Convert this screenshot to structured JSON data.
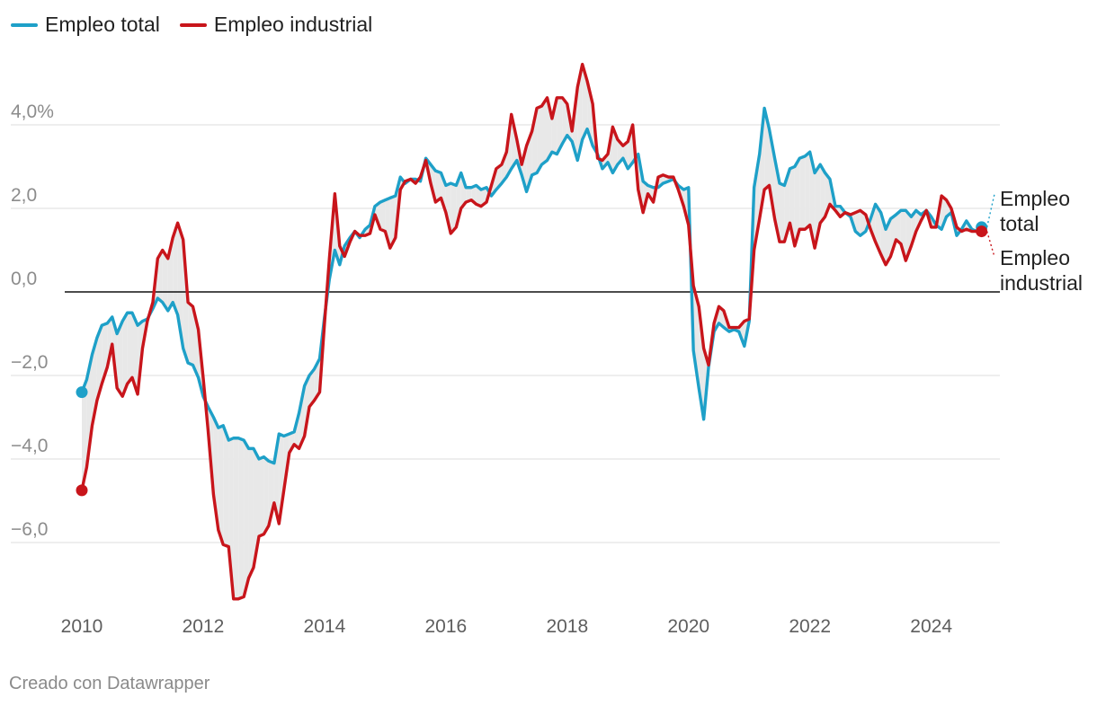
{
  "colors": {
    "total": "#1ea0c8",
    "industrial": "#c8151b",
    "gap_fill": "#e8e8e8",
    "grid": "#dcdcdc",
    "zero_line": "#111111"
  },
  "legend": {
    "items": [
      {
        "label": "Empleo total",
        "color_key": "total"
      },
      {
        "label": "Empleo industrial",
        "color_key": "industrial"
      }
    ]
  },
  "footer": {
    "credit": "Creado con Datawrapper"
  },
  "chart_data": {
    "type": "line",
    "title": "",
    "xlabel": "",
    "ylabel": "",
    "xlim": [
      2010,
      2024.85
    ],
    "ylim": [
      -7.4,
      5.4
    ],
    "y_ticks": [
      {
        "value": -6,
        "label": "−6,0"
      },
      {
        "value": -4,
        "label": "−4,0"
      },
      {
        "value": -2,
        "label": "−2,0"
      },
      {
        "value": 0,
        "label": "0,0"
      },
      {
        "value": 2,
        "label": "2,0"
      },
      {
        "value": 4,
        "label": "4,0%"
      }
    ],
    "x_ticks": [
      {
        "value": 2010,
        "label": "2010"
      },
      {
        "value": 2012,
        "label": "2012"
      },
      {
        "value": 2014,
        "label": "2014"
      },
      {
        "value": 2016,
        "label": "2016"
      },
      {
        "value": 2018,
        "label": "2018"
      },
      {
        "value": 2020,
        "label": "2020"
      },
      {
        "value": 2022,
        "label": "2022"
      },
      {
        "value": 2024,
        "label": "2024"
      }
    ],
    "grid": true,
    "legend_position": "top-left",
    "x": [
      2010.0,
      2010.08,
      2010.17,
      2010.25,
      2010.33,
      2010.42,
      2010.5,
      2010.58,
      2010.67,
      2010.75,
      2010.83,
      2010.92,
      2011.0,
      2011.08,
      2011.17,
      2011.25,
      2011.33,
      2011.42,
      2011.5,
      2011.58,
      2011.67,
      2011.75,
      2011.83,
      2011.92,
      2012.0,
      2012.08,
      2012.17,
      2012.25,
      2012.33,
      2012.42,
      2012.5,
      2012.58,
      2012.67,
      2012.75,
      2012.83,
      2012.92,
      2013.0,
      2013.08,
      2013.17,
      2013.25,
      2013.33,
      2013.42,
      2013.5,
      2013.58,
      2013.67,
      2013.75,
      2013.83,
      2013.92,
      2014.0,
      2014.08,
      2014.17,
      2014.25,
      2014.33,
      2014.42,
      2014.5,
      2014.58,
      2014.67,
      2014.75,
      2014.83,
      2014.92,
      2015.0,
      2015.08,
      2015.17,
      2015.25,
      2015.33,
      2015.42,
      2015.5,
      2015.58,
      2015.67,
      2015.75,
      2015.83,
      2015.92,
      2016.0,
      2016.08,
      2016.17,
      2016.25,
      2016.33,
      2016.42,
      2016.5,
      2016.58,
      2016.67,
      2016.75,
      2016.83,
      2016.92,
      2017.0,
      2017.08,
      2017.17,
      2017.25,
      2017.33,
      2017.42,
      2017.5,
      2017.58,
      2017.67,
      2017.75,
      2017.83,
      2017.92,
      2018.0,
      2018.08,
      2018.17,
      2018.25,
      2018.33,
      2018.42,
      2018.5,
      2018.58,
      2018.67,
      2018.75,
      2018.83,
      2018.92,
      2019.0,
      2019.08,
      2019.17,
      2019.25,
      2019.33,
      2019.42,
      2019.5,
      2019.58,
      2019.67,
      2019.75,
      2019.83,
      2019.92,
      2020.0,
      2020.08,
      2020.17,
      2020.25,
      2020.33,
      2020.42,
      2020.5,
      2020.58,
      2020.67,
      2020.75,
      2020.83,
      2020.92,
      2021.0,
      2021.08,
      2021.17,
      2021.25,
      2021.33,
      2021.42,
      2021.5,
      2021.58,
      2021.67,
      2021.75,
      2021.83,
      2021.92,
      2022.0,
      2022.08,
      2022.17,
      2022.25,
      2022.33,
      2022.42,
      2022.5,
      2022.58,
      2022.67,
      2022.75,
      2022.83,
      2022.92,
      2023.0,
      2023.08,
      2023.17,
      2023.25,
      2023.33,
      2023.42,
      2023.5,
      2023.58,
      2023.67,
      2023.75,
      2023.83,
      2023.92,
      2024.0,
      2024.08,
      2024.17,
      2024.25,
      2024.33,
      2024.42,
      2024.5,
      2024.58,
      2024.67,
      2024.75,
      2024.83
    ],
    "series": [
      {
        "name": "Empleo total",
        "color_key": "total",
        "end_label": [
          "Empleo",
          "total"
        ],
        "values": [
          -2.4,
          -2.1,
          -1.5,
          -1.1,
          -0.8,
          -0.75,
          -0.6,
          -1.0,
          -0.7,
          -0.5,
          -0.5,
          -0.8,
          -0.7,
          -0.65,
          -0.4,
          -0.15,
          -0.25,
          -0.45,
          -0.25,
          -0.55,
          -1.35,
          -1.7,
          -1.75,
          -2.05,
          -2.5,
          -2.75,
          -3.0,
          -3.25,
          -3.2,
          -3.55,
          -3.5,
          -3.5,
          -3.55,
          -3.75,
          -3.75,
          -4.0,
          -3.95,
          -4.05,
          -4.1,
          -3.4,
          -3.45,
          -3.4,
          -3.35,
          -2.9,
          -2.25,
          -2.0,
          -1.85,
          -1.6,
          -0.6,
          0.3,
          1.0,
          0.65,
          1.1,
          1.3,
          1.45,
          1.3,
          1.5,
          1.6,
          2.05,
          2.15,
          2.2,
          2.25,
          2.3,
          2.75,
          2.6,
          2.7,
          2.7,
          2.65,
          3.2,
          3.05,
          2.9,
          2.85,
          2.55,
          2.6,
          2.55,
          2.85,
          2.5,
          2.5,
          2.55,
          2.45,
          2.5,
          2.3,
          2.45,
          2.6,
          2.75,
          2.95,
          3.15,
          2.8,
          2.4,
          2.8,
          2.85,
          3.05,
          3.15,
          3.35,
          3.3,
          3.55,
          3.75,
          3.6,
          3.15,
          3.65,
          3.9,
          3.5,
          3.3,
          2.95,
          3.1,
          2.85,
          3.05,
          3.2,
          2.95,
          3.1,
          3.3,
          2.65,
          2.55,
          2.5,
          2.5,
          2.6,
          2.65,
          2.7,
          2.55,
          2.45,
          2.5,
          -1.4,
          -2.3,
          -3.05,
          -1.8,
          -0.95,
          -0.75,
          -0.85,
          -0.95,
          -0.9,
          -0.95,
          -1.3,
          -0.7,
          2.5,
          3.3,
          4.4,
          3.9,
          3.2,
          2.6,
          2.55,
          2.95,
          3.0,
          3.2,
          3.25,
          3.35,
          2.85,
          3.05,
          2.85,
          2.7,
          2.05,
          2.05,
          1.9,
          1.8,
          1.45,
          1.35,
          1.45,
          1.75,
          2.1,
          1.9,
          1.5,
          1.75,
          1.85,
          1.95,
          1.95,
          1.8,
          1.95,
          1.85,
          1.95,
          1.8,
          1.6,
          1.5,
          1.8,
          1.9,
          1.35,
          1.5,
          1.7,
          1.5,
          1.45,
          1.55
        ]
      },
      {
        "name": "Empleo industrial",
        "color_key": "industrial",
        "end_label": [
          "Empleo",
          "industrial"
        ],
        "values": [
          -4.75,
          -4.2,
          -3.2,
          -2.6,
          -2.2,
          -1.8,
          -1.25,
          -2.3,
          -2.5,
          -2.2,
          -2.05,
          -2.45,
          -1.35,
          -0.7,
          -0.25,
          0.8,
          1.0,
          0.8,
          1.3,
          1.65,
          1.25,
          -0.25,
          -0.35,
          -0.9,
          -2.05,
          -3.3,
          -4.85,
          -5.7,
          -6.05,
          -6.1,
          -7.35,
          -7.35,
          -7.3,
          -6.85,
          -6.6,
          -5.85,
          -5.8,
          -5.6,
          -5.05,
          -5.55,
          -4.75,
          -3.85,
          -3.65,
          -3.75,
          -3.45,
          -2.75,
          -2.6,
          -2.4,
          -0.75,
          0.8,
          2.35,
          1.1,
          0.85,
          1.2,
          1.45,
          1.35,
          1.35,
          1.4,
          1.85,
          1.5,
          1.45,
          1.05,
          1.3,
          2.45,
          2.65,
          2.7,
          2.6,
          2.75,
          3.15,
          2.6,
          2.15,
          2.25,
          1.9,
          1.4,
          1.55,
          2.0,
          2.15,
          2.2,
          2.1,
          2.05,
          2.15,
          2.55,
          2.95,
          3.05,
          3.35,
          4.25,
          3.65,
          3.05,
          3.5,
          3.85,
          4.4,
          4.45,
          4.65,
          4.15,
          4.65,
          4.65,
          4.5,
          3.85,
          4.9,
          5.45,
          5.05,
          4.5,
          3.2,
          3.15,
          3.3,
          3.95,
          3.65,
          3.5,
          3.6,
          4.0,
          2.45,
          1.9,
          2.35,
          2.15,
          2.75,
          2.8,
          2.75,
          2.75,
          2.45,
          2.05,
          1.6,
          0.15,
          -0.35,
          -1.35,
          -1.75,
          -0.75,
          -0.35,
          -0.45,
          -0.85,
          -0.85,
          -0.85,
          -0.7,
          -0.65,
          1.0,
          1.75,
          2.45,
          2.55,
          1.75,
          1.2,
          1.2,
          1.65,
          1.1,
          1.5,
          1.5,
          1.6,
          1.05,
          1.65,
          1.8,
          2.1,
          1.95,
          1.8,
          1.9,
          1.85,
          1.9,
          1.95,
          1.85,
          1.5,
          1.2,
          0.9,
          0.65,
          0.85,
          1.25,
          1.15,
          0.75,
          1.1,
          1.45,
          1.7,
          1.95,
          1.55,
          1.55,
          2.3,
          2.2,
          2.0,
          1.55,
          1.45,
          1.5,
          1.45,
          1.45,
          1.45
        ]
      }
    ]
  }
}
